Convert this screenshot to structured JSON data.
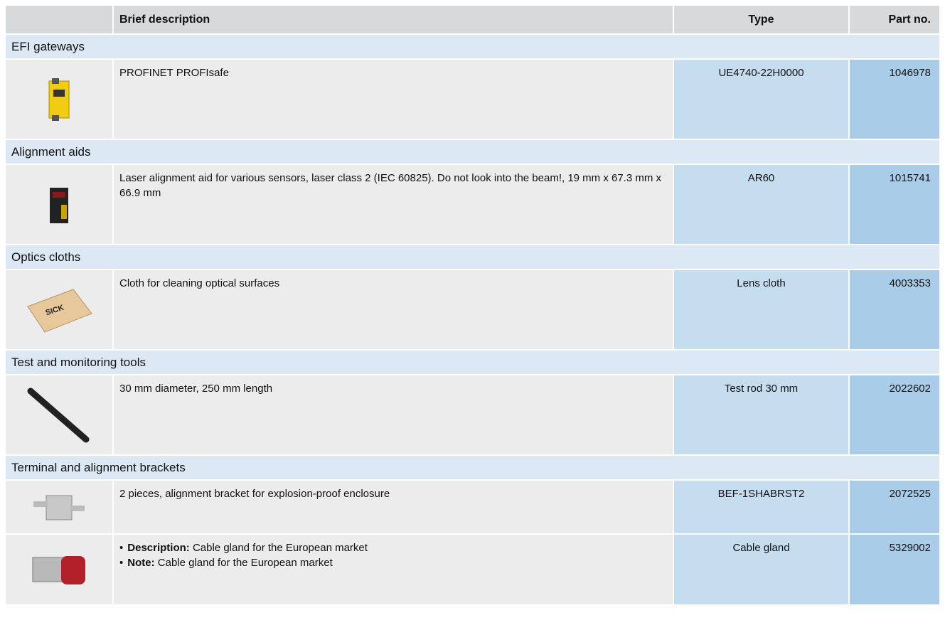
{
  "header": {
    "description": "Brief description",
    "type": "Type",
    "part_no": "Part no."
  },
  "sections": [
    {
      "title": "EFI gateways",
      "items": [
        {
          "description": "PROFINET PROFIsafe",
          "type": "UE4740-22H0000",
          "part_no": "1046978"
        }
      ]
    },
    {
      "title": "Alignment aids",
      "items": [
        {
          "description": "Laser alignment aid for various sensors, laser class 2 (IEC 60825). Do not look into the beam!, 19 mm x 67.3 mm x 66.9 mm",
          "type": "AR60",
          "part_no": "1015741"
        }
      ]
    },
    {
      "title": "Optics cloths",
      "items": [
        {
          "description": "Cloth for cleaning optical surfaces",
          "type": "Lens cloth",
          "part_no": "4003353"
        }
      ]
    },
    {
      "title": "Test and monitoring tools",
      "items": [
        {
          "description": "30 mm diameter, 250 mm length",
          "type": "Test rod 30 mm",
          "part_no": "2022602"
        }
      ]
    },
    {
      "title": "Terminal and alignment brackets",
      "items": [
        {
          "description": "2 pieces, alignment bracket for explosion-proof enclosure",
          "type": "BEF-1SHABRST2",
          "part_no": "2072525"
        },
        {
          "bullets": [
            {
              "label": "Description:",
              "text": "Cable gland for the European market"
            },
            {
              "label": "Note:",
              "text": "Cable gland for the European market"
            }
          ],
          "type": "Cable gland",
          "part_no": "5329002"
        }
      ]
    }
  ]
}
